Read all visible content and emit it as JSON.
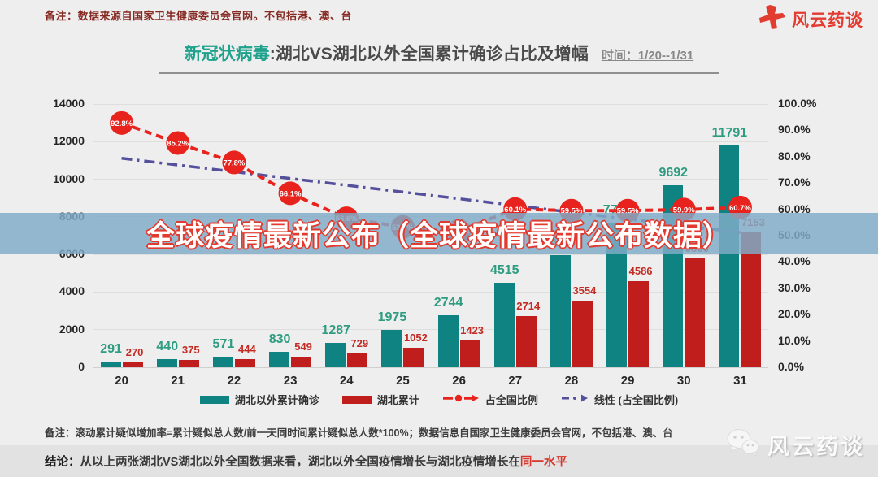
{
  "header": {
    "note": "备注：数据来源自国家卫生健康委员会官网。不包括港、澳、台",
    "brand": "风云药谈"
  },
  "title": {
    "highlight": "新冠状病毒",
    "rest": ":湖北VS湖北以外全国累计确诊占比及增幅",
    "time": "时间：1/20--1/31"
  },
  "overlay_banner": {
    "text": "全球疫情最新公布（全球疫情最新公布数据）",
    "bg_color": "#7fabc7",
    "text_color": "#ffffff",
    "outline_color": "#e23a2e"
  },
  "chart_data": {
    "type": "bar",
    "categories": [
      "20",
      "21",
      "22",
      "23",
      "24",
      "25",
      "26",
      "27",
      "28",
      "29",
      "30",
      "31"
    ],
    "series": [
      {
        "name": "湖北以外累计确诊",
        "type": "bar",
        "color": "#0e8381",
        "values": [
          291,
          440,
          571,
          830,
          1287,
          1975,
          2744,
          4515,
          5974,
          7711,
          9692,
          11791
        ]
      },
      {
        "name": "湖北累计",
        "type": "bar",
        "color": "#bf1e1d",
        "values": [
          270,
          375,
          444,
          549,
          729,
          1052,
          1423,
          2714,
          3554,
          4586,
          5806,
          7153
        ]
      },
      {
        "name": "占全国比例",
        "type": "line",
        "color": "#e8231d",
        "values_pct": [
          92.8,
          85.2,
          77.8,
          66.1,
          56.6,
          53.3,
          51.9,
          60.1,
          59.5,
          59.5,
          59.9,
          60.7
        ]
      },
      {
        "name": "线性 (占全国比例)",
        "type": "trend",
        "color": "#54509c",
        "start_pct": 79.4,
        "end_pct": 51.2
      }
    ],
    "left_axis": {
      "min": 0,
      "max": 14000,
      "step": 2000
    },
    "right_axis": {
      "min": 0,
      "max": 100,
      "step": 10,
      "suffix": "%"
    },
    "grid": true,
    "legend_position": "bottom",
    "xlabel": "",
    "ylabel": ""
  },
  "legend": [
    {
      "label": "湖北以外累计确诊",
      "color": "#0e8381"
    },
    {
      "label": "湖北累计",
      "color": "#bf1e1d"
    },
    {
      "label": "占全国比例",
      "color": "#e8231d"
    },
    {
      "label": "线性 (占全国比例)",
      "color": "#54509c"
    }
  ],
  "footer": {
    "note": "备注：滚动累计疑似增加率=累计疑似总人数/前一天同时间累计疑似总人数*100%；数据信息自国家卫生健康委员会官网，不包括港、澳、台",
    "conclusion_label": "结论：",
    "conclusion_text": "从以上两张湖北VS湖北以外全国数据来看，湖北以外全国疫情增长与湖北疫情增长在",
    "conclusion_highlight": "同一水平",
    "brand_watermark": "风云药谈"
  }
}
